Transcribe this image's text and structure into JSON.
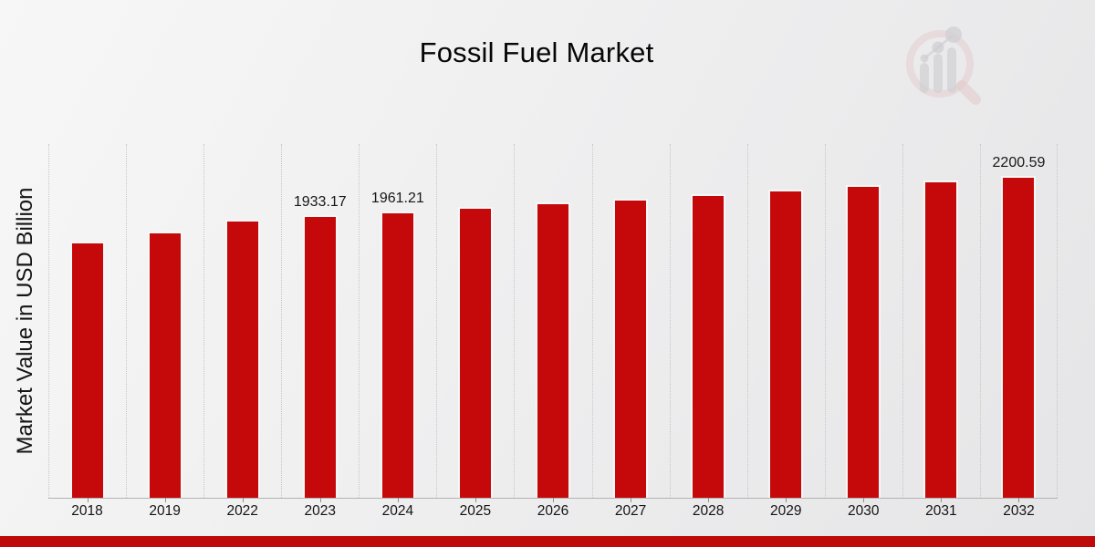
{
  "chart_data": {
    "type": "bar",
    "title": "Fossil Fuel Market",
    "ylabel": "Market Value in USD Billion",
    "xlabel": "",
    "categories": [
      "2018",
      "2019",
      "2022",
      "2023",
      "2024",
      "2025",
      "2026",
      "2027",
      "2028",
      "2029",
      "2030",
      "2031",
      "2032"
    ],
    "values": [
      1755,
      1824,
      1903,
      1933.17,
      1961.21,
      1990,
      2018,
      2048,
      2078,
      2108,
      2138,
      2169,
      2200.59
    ],
    "bar_value_labels": [
      "",
      "",
      "",
      "1933.17",
      "1961.21",
      "",
      "",
      "",
      "",
      "",
      "",
      "",
      "2200.59"
    ],
    "ylim": [
      0,
      2420
    ],
    "grid": "vertical dotted category separators",
    "legend_position": "none",
    "bar_color": "#c5090b"
  },
  "colors": {
    "bar_red": "#c5090b",
    "footer_band_red": "#bf0a0a",
    "gridline_gray": "#c7c7c7",
    "axis_gray": "#b3b3b3"
  },
  "branding": {
    "watermark_icon": "magnifier-growth-chart-logo"
  }
}
